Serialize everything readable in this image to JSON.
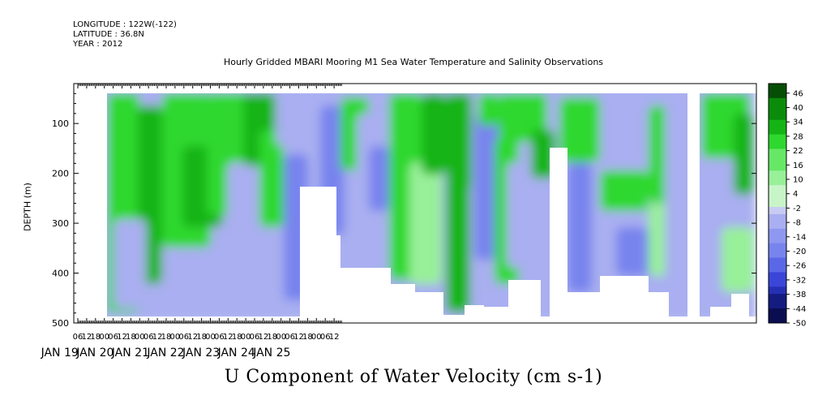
{
  "header": {
    "longitude": "LONGITUDE : 122W(-122)",
    "latitude": "LATITUDE : 36.8N",
    "year": "YEAR : 2012"
  },
  "chart_data": {
    "type": "heatmap",
    "title": "Hourly Gridded MBARI Mooring M1 Sea Water Temperature and Salinity Observations",
    "xlabel": "",
    "ylabel": "DEPTH (m)",
    "bottom_label": "U Component of Water Velocity (cm s-1)",
    "ylim": [
      500,
      20
    ],
    "y_axis_inverted": true,
    "y_ticks": [
      100,
      200,
      300,
      400,
      500
    ],
    "x_hour_tick_labels": [
      "06",
      "12",
      "18",
      "00",
      "06",
      "12",
      "18",
      "00",
      "06",
      "12",
      "18",
      "00",
      "06",
      "12",
      "18",
      "00",
      "06",
      "12",
      "18",
      "00",
      "06",
      "12",
      "18",
      "00",
      "06",
      "12",
      "18",
      "00",
      "06",
      "12"
    ],
    "x_date_labels": [
      "JAN 19",
      "JAN 20",
      "JAN 21",
      "JAN 22",
      "JAN 23",
      "JAN 24",
      "JAN 25"
    ],
    "colorbar": {
      "range": [
        -50,
        50
      ],
      "tick_labels": [
        46,
        40,
        34,
        28,
        22,
        16,
        10,
        4,
        -2,
        -8,
        -14,
        -20,
        -26,
        -32,
        -38,
        -44,
        -50
      ],
      "colors_positive": [
        "#c8f5c8",
        "#98f098",
        "#66e866",
        "#2ed82e",
        "#14b414",
        "#0a8c0a",
        "#064e06"
      ],
      "colors_negative": [
        "#c8ccf2",
        "#a9aff0",
        "#8f98f0",
        "#7884ee",
        "#5a68e8",
        "#3a46d8",
        "#2530b4",
        "#141c80",
        "#0a0e50"
      ]
    },
    "grid": false
  }
}
